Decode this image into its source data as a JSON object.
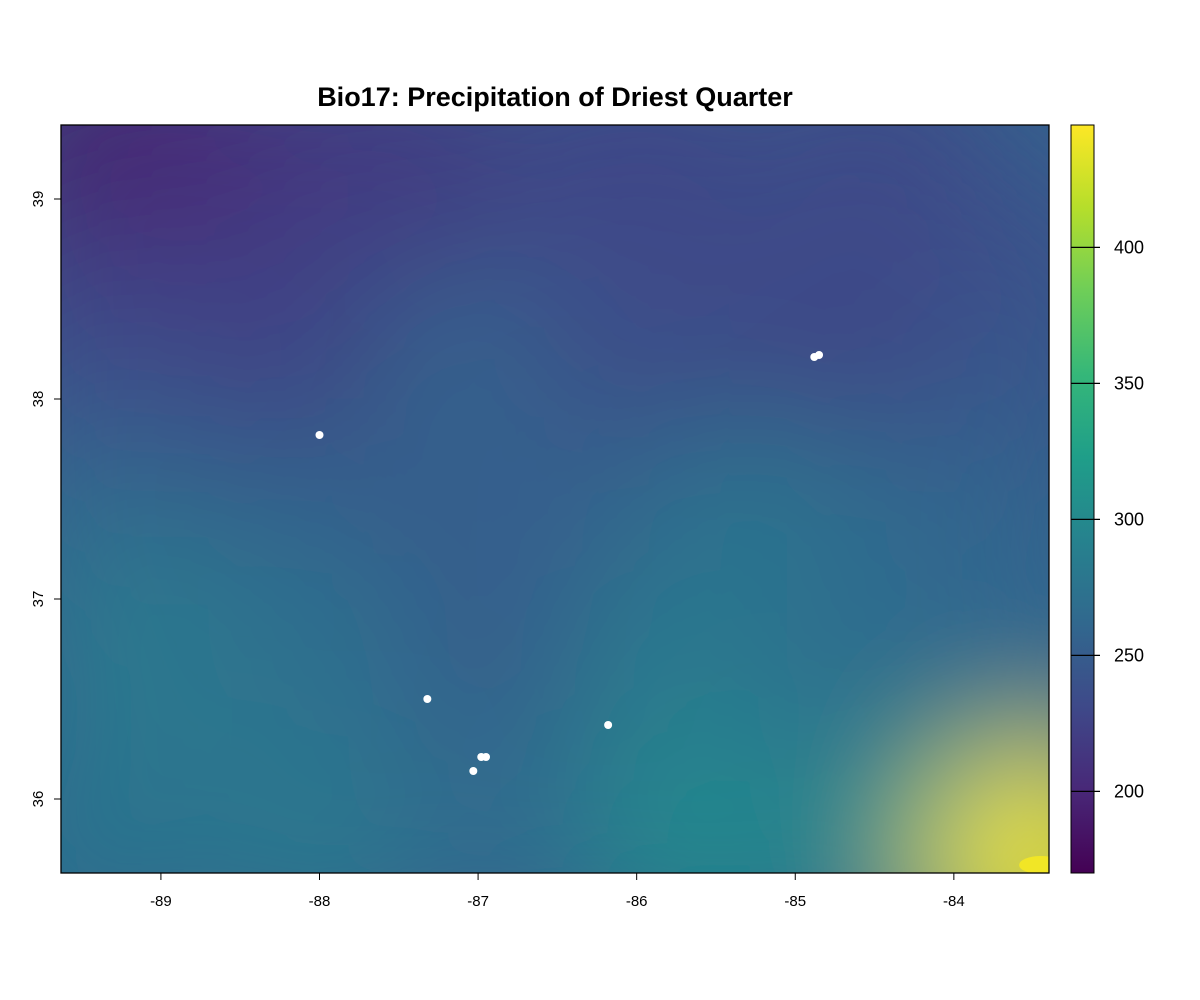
{
  "chart_data": {
    "type": "heatmap",
    "title": "Bio17: Precipitation of Driest Quarter",
    "xlabel": "",
    "ylabel": "",
    "xlim": [
      -89.63,
      -83.4
    ],
    "ylim": [
      35.63,
      39.37
    ],
    "x_ticks": [
      -89,
      -88,
      -87,
      -86,
      -85,
      -84
    ],
    "y_ticks": [
      36,
      37,
      38,
      39
    ],
    "legend": {
      "placement": "right",
      "range": [
        170,
        445
      ],
      "ticks": [
        200,
        250,
        300,
        350,
        400
      ],
      "palette": [
        "#440154",
        "#482878",
        "#3e4989",
        "#31688e",
        "#26828e",
        "#1f9e89",
        "#35b779",
        "#6ece58",
        "#b5de2b",
        "#fde725"
      ]
    },
    "field_samples": [
      {
        "x": -89.4,
        "y": 39.2,
        "v": 185
      },
      {
        "x": -88.7,
        "y": 39.2,
        "v": 200
      },
      {
        "x": -87.5,
        "y": 39.2,
        "v": 215
      },
      {
        "x": -86.0,
        "y": 39.2,
        "v": 225
      },
      {
        "x": -84.5,
        "y": 39.2,
        "v": 228
      },
      {
        "x": -89.4,
        "y": 38.5,
        "v": 215
      },
      {
        "x": -88.0,
        "y": 38.5,
        "v": 225
      },
      {
        "x": -86.5,
        "y": 38.5,
        "v": 235
      },
      {
        "x": -85.0,
        "y": 38.5,
        "v": 238
      },
      {
        "x": -83.6,
        "y": 38.5,
        "v": 235
      },
      {
        "x": -89.4,
        "y": 38.0,
        "v": 235
      },
      {
        "x": -88.0,
        "y": 37.9,
        "v": 222
      },
      {
        "x": -87.0,
        "y": 38.0,
        "v": 262
      },
      {
        "x": -86.0,
        "y": 38.0,
        "v": 230
      },
      {
        "x": -84.7,
        "y": 38.1,
        "v": 225
      },
      {
        "x": -83.6,
        "y": 38.0,
        "v": 245
      },
      {
        "x": -89.4,
        "y": 37.3,
        "v": 265
      },
      {
        "x": -88.3,
        "y": 37.3,
        "v": 258
      },
      {
        "x": -87.2,
        "y": 37.3,
        "v": 250
      },
      {
        "x": -86.3,
        "y": 37.4,
        "v": 255
      },
      {
        "x": -85.2,
        "y": 37.4,
        "v": 275
      },
      {
        "x": -84.0,
        "y": 37.3,
        "v": 260
      },
      {
        "x": -89.0,
        "y": 36.7,
        "v": 285
      },
      {
        "x": -88.0,
        "y": 36.7,
        "v": 270
      },
      {
        "x": -86.7,
        "y": 36.4,
        "v": 245
      },
      {
        "x": -85.8,
        "y": 36.6,
        "v": 282
      },
      {
        "x": -84.5,
        "y": 36.6,
        "v": 268
      },
      {
        "x": -83.6,
        "y": 36.5,
        "v": 262
      },
      {
        "x": -89.4,
        "y": 35.8,
        "v": 275
      },
      {
        "x": -88.0,
        "y": 35.8,
        "v": 280
      },
      {
        "x": -86.8,
        "y": 35.9,
        "v": 265
      },
      {
        "x": -85.6,
        "y": 35.8,
        "v": 300
      },
      {
        "x": -84.4,
        "y": 35.8,
        "v": 292
      },
      {
        "x": -83.6,
        "y": 35.75,
        "v": 330
      },
      {
        "x": -83.45,
        "y": 35.67,
        "v": 440
      }
    ],
    "points": [
      {
        "x": -88.0,
        "y": 37.82
      },
      {
        "x": -84.88,
        "y": 38.21
      },
      {
        "x": -84.85,
        "y": 38.22
      },
      {
        "x": -87.32,
        "y": 36.5
      },
      {
        "x": -86.98,
        "y": 36.21
      },
      {
        "x": -86.95,
        "y": 36.21
      },
      {
        "x": -87.03,
        "y": 36.14
      },
      {
        "x": -86.18,
        "y": 36.37
      }
    ]
  }
}
